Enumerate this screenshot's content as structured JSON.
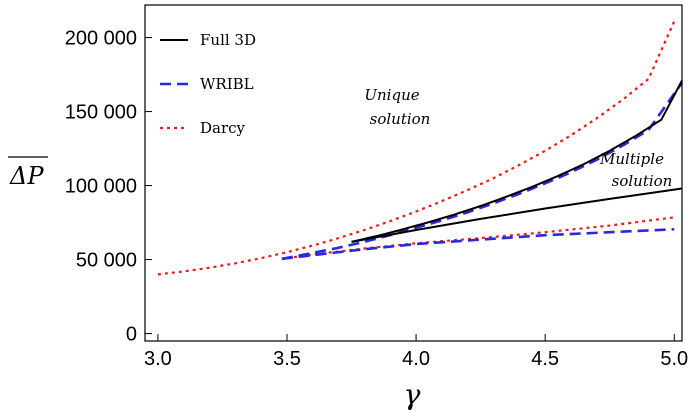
{
  "chart_data": {
    "type": "line",
    "xlabel": "γ",
    "ylabel": "ΔP",
    "xlim": [
      2.95,
      5.03
    ],
    "ylim": [
      -5000,
      222000
    ],
    "x_ticks": [
      3.0,
      3.5,
      4.0,
      4.5,
      5.0
    ],
    "x_tick_labels": [
      "3.0",
      "3.5",
      "4.0",
      "4.5",
      "5.0"
    ],
    "y_ticks": [
      0,
      50000,
      100000,
      150000,
      200000
    ],
    "y_tick_labels": [
      "0",
      "50 000",
      "100 000",
      "150 000",
      "200 000"
    ],
    "grid": false,
    "legend": "top-left",
    "series": [
      {
        "name": "Full 3D",
        "style": "solid",
        "color": "#000000",
        "branches": [
          {
            "x": [
              3.75,
              3.85,
              3.95,
              4.05,
              4.15,
              4.25,
              4.35,
              4.45,
              4.55,
              4.65,
              4.75,
              4.85,
              4.95,
              5.03
            ],
            "y": [
              62000,
              66000,
              70500,
              75300,
              80500,
              86200,
              92500,
              99200,
              106500,
              114500,
              123500,
              133500,
              144500,
              171000
            ]
          },
          {
            "x": [
              3.75,
              4.0,
              4.25,
              4.5,
              4.75,
              5.03
            ],
            "y": [
              62000,
              70000,
              77500,
              84500,
              91000,
              98000
            ]
          }
        ]
      },
      {
        "name": "WRIBL",
        "style": "dashed",
        "color": "#2929d9",
        "branches": [
          {
            "x": [
              3.48,
              3.6,
              3.7,
              3.8,
              3.9,
              4.0,
              4.1,
              4.2,
              4.3,
              4.4,
              4.5,
              4.6,
              4.7,
              4.8,
              4.9,
              5.03
            ],
            "y": [
              50500,
              54500,
              58000,
              62000,
              66500,
              71500,
              76500,
              82000,
              88000,
              94500,
              101500,
              109000,
              117500,
              127000,
              137500,
              169500
            ]
          },
          {
            "x": [
              3.48,
              3.6,
              3.8,
              4.0,
              4.25,
              4.5,
              4.75,
              5.0
            ],
            "y": [
              50500,
              53000,
              57000,
              60500,
              63500,
              66500,
              68500,
              70500
            ]
          }
        ]
      },
      {
        "name": "Darcy",
        "style": "dotted",
        "color": "#ee1c1c",
        "branches": [
          {
            "x": [
              3.0,
              3.1,
              3.2,
              3.3,
              3.4,
              3.5,
              3.6,
              3.7,
              3.8,
              3.9,
              4.0,
              4.1,
              4.2,
              4.3,
              4.4,
              4.5,
              4.6,
              4.7,
              4.8,
              4.9,
              5.0
            ],
            "y": [
              40000,
              42000,
              44500,
              47500,
              51000,
              55000,
              59500,
              64500,
              70000,
              76000,
              82500,
              89500,
              97000,
              105000,
              114000,
              123500,
              134000,
              145500,
              158000,
              172000,
              211000
            ]
          },
          {
            "x": [
              3.5,
              3.6,
              3.8,
              4.0,
              4.25,
              4.5,
              4.75,
              5.0
            ],
            "y": [
              51000,
              53500,
              57500,
              61000,
              64500,
              68500,
              73000,
              78500
            ]
          }
        ]
      }
    ],
    "annotations": [
      {
        "lines": [
          "Unique",
          "solution"
        ],
        "x": 3.92,
        "y": 155000
      },
      {
        "lines": [
          "Multiple",
          "solution"
        ],
        "x": 4.88,
        "y": 112000
      }
    ]
  }
}
